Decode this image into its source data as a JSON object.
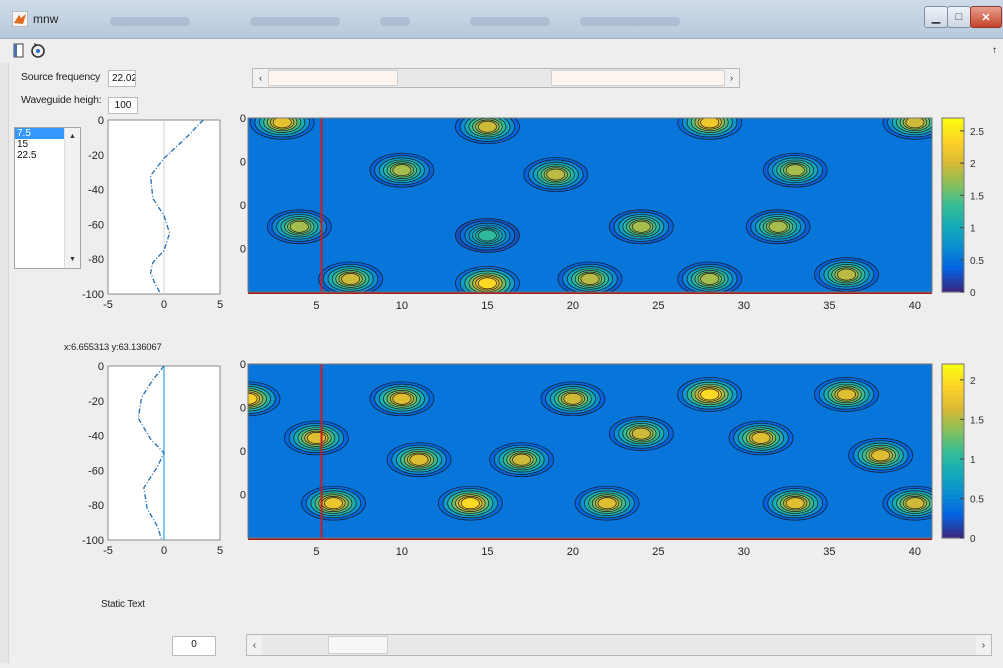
{
  "window": {
    "title": "mnw"
  },
  "toolbar": {
    "buttons": [
      "new-figure-icon",
      "rotate-icon"
    ]
  },
  "controls": {
    "source_frequency": {
      "label": "Source frequency",
      "value": "22.02"
    },
    "waveguide_height": {
      "label": "Waveguide heigh:",
      "value": "100"
    },
    "depth_list": {
      "items": [
        "7.5",
        "15",
        "22.5"
      ],
      "selected": "7.5"
    },
    "coords_readout": "x:6.655313 y:63.136067",
    "static_text": "Static Text",
    "bottom_edit_value": "0",
    "freq_slider_value": 0.47,
    "bottom_slider_value": 0.1
  },
  "chart_data": [
    {
      "type": "line",
      "title": "",
      "xlim": [
        -5,
        5
      ],
      "ylim": [
        -100,
        0
      ],
      "x_ticks": [
        "-5",
        "0",
        "5"
      ],
      "y_ticks": [
        "0",
        "-20",
        "-40",
        "-60",
        "-80",
        "-100"
      ],
      "series": [
        {
          "x": [
            3.5,
            2.0,
            0.0,
            -1.2,
            -1.0,
            0.0,
            0.5,
            0.0,
            -1.0,
            -1.2,
            -0.8,
            -0.3
          ],
          "y": [
            0,
            -10,
            -22,
            -32,
            -45,
            -55,
            -65,
            -75,
            -82,
            -88,
            -94,
            -100
          ]
        }
      ]
    },
    {
      "type": "heatmap",
      "title": "",
      "xlim": [
        1,
        41
      ],
      "ylim": [
        0,
        40
      ],
      "x_ticks": [
        "5",
        "10",
        "15",
        "20",
        "25",
        "30",
        "35",
        "40"
      ],
      "y_ticks": [
        "10",
        "20",
        "30",
        "40"
      ],
      "colorbar_ticks": [
        "2.5",
        "2",
        "1.5",
        "1",
        "0.5",
        "0"
      ],
      "colorbar_range": [
        0,
        2.7
      ],
      "marker_x": 5.3,
      "peaks": [
        {
          "x": 3,
          "y": 39,
          "v": 2.4
        },
        {
          "x": 15,
          "y": 38,
          "v": 2.2
        },
        {
          "x": 28,
          "y": 39,
          "v": 2.5
        },
        {
          "x": 40,
          "y": 39,
          "v": 2.2
        },
        {
          "x": 10,
          "y": 28,
          "v": 2.0
        },
        {
          "x": 19,
          "y": 27,
          "v": 2.1
        },
        {
          "x": 33,
          "y": 28,
          "v": 2.0
        },
        {
          "x": 4,
          "y": 15,
          "v": 2.0
        },
        {
          "x": 15,
          "y": 13,
          "v": 1.4
        },
        {
          "x": 24,
          "y": 15,
          "v": 2.0
        },
        {
          "x": 32,
          "y": 15,
          "v": 2.0
        },
        {
          "x": 7,
          "y": 3,
          "v": 2.2
        },
        {
          "x": 15,
          "y": 2,
          "v": 2.7
        },
        {
          "x": 21,
          "y": 3,
          "v": 2.1
        },
        {
          "x": 28,
          "y": 3,
          "v": 2.0
        },
        {
          "x": 36,
          "y": 4,
          "v": 2.1
        }
      ]
    },
    {
      "type": "line",
      "title": "",
      "xlim": [
        -5,
        5
      ],
      "ylim": [
        -100,
        0
      ],
      "x_ticks": [
        "-5",
        "0",
        "5"
      ],
      "y_ticks": [
        "0",
        "-20",
        "-40",
        "-60",
        "-80",
        "-100"
      ],
      "series": [
        {
          "x": [
            0.0,
            -1.0,
            -2.0,
            -2.3,
            -1.2,
            0.0,
            -0.6,
            -1.8,
            -1.5,
            -0.6,
            -0.2
          ],
          "y": [
            0,
            -8,
            -18,
            -30,
            -42,
            -50,
            -58,
            -70,
            -82,
            -92,
            -100
          ]
        }
      ],
      "vline_x": 0
    },
    {
      "type": "heatmap",
      "title": "",
      "xlim": [
        1,
        41
      ],
      "ylim": [
        0,
        40
      ],
      "x_ticks": [
        "5",
        "10",
        "15",
        "20",
        "25",
        "30",
        "35",
        "40"
      ],
      "y_ticks": [
        "10",
        "20",
        "30",
        "40"
      ],
      "colorbar_ticks": [
        "2",
        "1.5",
        "1",
        "0.5",
        "0"
      ],
      "colorbar_range": [
        0,
        2.2
      ],
      "marker_x": 5.3,
      "peaks": [
        {
          "x": 1,
          "y": 32,
          "v": 2.1
        },
        {
          "x": 10,
          "y": 32,
          "v": 1.9
        },
        {
          "x": 20,
          "y": 32,
          "v": 1.8
        },
        {
          "x": 28,
          "y": 33,
          "v": 2.2
        },
        {
          "x": 36,
          "y": 33,
          "v": 1.9
        },
        {
          "x": 5,
          "y": 23,
          "v": 1.9
        },
        {
          "x": 24,
          "y": 24,
          "v": 1.8
        },
        {
          "x": 31,
          "y": 23,
          "v": 1.9
        },
        {
          "x": 11,
          "y": 18,
          "v": 1.9
        },
        {
          "x": 17,
          "y": 18,
          "v": 1.8
        },
        {
          "x": 38,
          "y": 19,
          "v": 1.9
        },
        {
          "x": 6,
          "y": 8,
          "v": 2.0
        },
        {
          "x": 14,
          "y": 8,
          "v": 2.2
        },
        {
          "x": 22,
          "y": 8,
          "v": 1.9
        },
        {
          "x": 33,
          "y": 8,
          "v": 1.9
        },
        {
          "x": 40,
          "y": 8,
          "v": 1.8
        }
      ]
    }
  ]
}
